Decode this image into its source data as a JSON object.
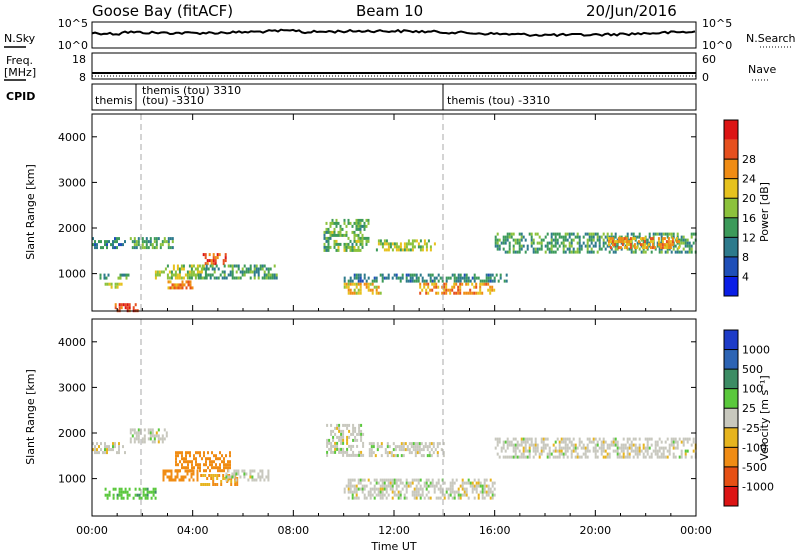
{
  "header": {
    "station": "Goose Bay (fitACF)",
    "beam": "Beam 10",
    "date": "20/Jun/2016"
  },
  "nsky_panel": {
    "left_label": "N.Sky",
    "left_ticks": [
      "10^5",
      "10^0"
    ],
    "right_label": "N.Search",
    "right_ticks": [
      "10^5",
      "10^0"
    ]
  },
  "freq_panel": {
    "left_label_line1": "Freq.",
    "left_label_line2": "[MHz]",
    "left_ticks": [
      "18",
      "8"
    ],
    "right_label": "Nave",
    "right_ticks": [
      "60",
      "0"
    ]
  },
  "cpid_panel": {
    "label": "CPID",
    "segments": [
      {
        "text": "themis",
        "start_hour": 0.0
      },
      {
        "text": "themis (tou) 3310",
        "start_hour": 1.75
      },
      {
        "text": "(tou) -3310",
        "start_hour": 1.75
      },
      {
        "text": "themis (tou) -3310",
        "start_hour": 14.0
      }
    ],
    "boundaries_hours": [
      1.75,
      14.0
    ]
  },
  "power_panel": {
    "ylabel": "Slant Range [km]",
    "yticks": [
      "1000",
      "2000",
      "3000",
      "4000"
    ],
    "colorbar": {
      "title": "Power [dB]",
      "ticks": [
        "4",
        "8",
        "12",
        "16",
        "20",
        "24",
        "28"
      ],
      "colors": [
        "#0a1ee6",
        "#1f4fb8",
        "#2d7a8c",
        "#3c9a5a",
        "#8cc23c",
        "#e6c21e",
        "#f08c14",
        "#e6501e",
        "#dc1414"
      ]
    }
  },
  "velocity_panel": {
    "ylabel": "Slant Range [km]",
    "yticks": [
      "1000",
      "2000",
      "3000",
      "4000"
    ],
    "colorbar": {
      "title": "Velocity [m s⁻¹]",
      "ticks": [
        "1000",
        "500",
        "100",
        "25",
        "-25",
        "-100",
        "-500",
        "-1000"
      ],
      "colors": [
        "#1e3cc8",
        "#2d64b4",
        "#3c8c64",
        "#5ac83c",
        "#c8c8be",
        "#e6b41e",
        "#f08c14",
        "#e65014",
        "#dc1414"
      ]
    }
  },
  "time_axis": {
    "xlabel": "Time UT",
    "ticks": [
      "00:00",
      "04:00",
      "08:00",
      "12:00",
      "16:00",
      "20:00",
      "00:00"
    ]
  },
  "chart_data": {
    "type": "heatmap",
    "title": "Goose Bay (fitACF)",
    "xlabel": "Time UT",
    "ylabel": "Slant Range [km]",
    "xlim_hours": [
      0,
      24
    ],
    "ylim_km": [
      180,
      4500
    ],
    "series": [
      {
        "name": "Power [dB]",
        "regions": [
          {
            "t0": 0.0,
            "t1": 1.3,
            "r0": 1600,
            "r1": 1800,
            "value": 10
          },
          {
            "t0": 0.3,
            "t1": 1.5,
            "r0": 900,
            "r1": 1000,
            "value": 12
          },
          {
            "t0": 0.5,
            "t1": 1.2,
            "r0": 700,
            "r1": 800,
            "value": 18
          },
          {
            "t0": 0.9,
            "t1": 1.8,
            "r0": 200,
            "r1": 350,
            "value": 28
          },
          {
            "t0": 1.5,
            "t1": 3.2,
            "r0": 1600,
            "r1": 1800,
            "value": 12
          },
          {
            "t0": 2.5,
            "t1": 4.5,
            "r0": 900,
            "r1": 1200,
            "value": 16
          },
          {
            "t0": 3.0,
            "t1": 4.0,
            "r0": 700,
            "r1": 850,
            "value": 24
          },
          {
            "t0": 4.4,
            "t1": 5.3,
            "r0": 1200,
            "r1": 1450,
            "value": 26
          },
          {
            "t0": 4.2,
            "t1": 7.3,
            "r0": 900,
            "r1": 1200,
            "value": 12
          },
          {
            "t0": 9.2,
            "t1": 11.0,
            "r0": 1500,
            "r1": 2200,
            "value": 14
          },
          {
            "t0": 10.0,
            "t1": 11.5,
            "r0": 600,
            "r1": 800,
            "value": 20
          },
          {
            "t0": 10.0,
            "t1": 16.5,
            "r0": 850,
            "r1": 1000,
            "value": 10
          },
          {
            "t0": 11.2,
            "t1": 13.6,
            "r0": 1500,
            "r1": 1750,
            "value": 16
          },
          {
            "t0": 13.0,
            "t1": 16.0,
            "r0": 600,
            "r1": 800,
            "value": 22
          },
          {
            "t0": 16.0,
            "t1": 24.0,
            "r0": 1500,
            "r1": 1900,
            "value": 12
          },
          {
            "t0": 20.5,
            "t1": 23.3,
            "r0": 1600,
            "r1": 1800,
            "value": 22
          }
        ]
      },
      {
        "name": "Velocity [m s⁻¹]",
        "regions": [
          {
            "t0": 0.0,
            "t1": 1.3,
            "r0": 1600,
            "r1": 1800,
            "value": 0
          },
          {
            "t0": 0.5,
            "t1": 2.5,
            "r0": 600,
            "r1": 800,
            "value": 80
          },
          {
            "t0": 1.5,
            "t1": 3.0,
            "r0": 1800,
            "r1": 2100,
            "value": 0
          },
          {
            "t0": 2.8,
            "t1": 4.2,
            "r0": 1000,
            "r1": 1200,
            "value": -200
          },
          {
            "t0": 3.3,
            "t1": 5.5,
            "r0": 1200,
            "r1": 1600,
            "value": -300
          },
          {
            "t0": 4.3,
            "t1": 5.8,
            "r0": 900,
            "r1": 1100,
            "value": -100
          },
          {
            "t0": 5.3,
            "t1": 7.0,
            "r0": 1000,
            "r1": 1200,
            "value": 0
          },
          {
            "t0": 9.3,
            "t1": 10.8,
            "r0": 1500,
            "r1": 2200,
            "value": 0
          },
          {
            "t0": 10.0,
            "t1": 16.0,
            "r0": 600,
            "r1": 1000,
            "value": 0
          },
          {
            "t0": 11.0,
            "t1": 14.0,
            "r0": 1500,
            "r1": 1800,
            "value": 0
          },
          {
            "t0": 16.0,
            "t1": 24.0,
            "r0": 1500,
            "r1": 1900,
            "value": 0
          }
        ]
      }
    ]
  }
}
